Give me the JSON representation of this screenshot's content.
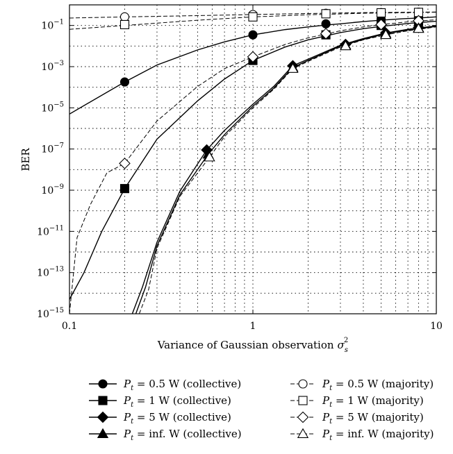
{
  "chart_data": {
    "type": "line",
    "xlabel_main": "Variance of Gaussian observation",
    "xlabel_symbol": "σ",
    "xlabel_sub": "s",
    "xlabel_sup": "2",
    "ylabel": "BER",
    "x_scale": "log",
    "y_scale": "log",
    "xlim": [
      0.1,
      10
    ],
    "ylim": [
      1e-15,
      1
    ],
    "x_ticks": [
      {
        "value": 0.1,
        "label": "0.1"
      },
      {
        "value": 1,
        "label": "1"
      },
      {
        "value": 10,
        "label": "10"
      }
    ],
    "y_ticks": [
      {
        "value": 1e-15,
        "base": "10",
        "exp": "−15"
      },
      {
        "value": 1e-13,
        "base": "10",
        "exp": "−13"
      },
      {
        "value": 1e-11,
        "base": "10",
        "exp": "−11"
      },
      {
        "value": 1e-09,
        "base": "10",
        "exp": "−9"
      },
      {
        "value": 1e-07,
        "base": "10",
        "exp": "−7"
      },
      {
        "value": 1e-05,
        "base": "10",
        "exp": "−5"
      },
      {
        "value": 0.001,
        "base": "10",
        "exp": "−3"
      },
      {
        "value": 0.1,
        "base": "10",
        "exp": "−1"
      }
    ],
    "grid": true,
    "legend_position": "below",
    "series": [
      {
        "name": {
          "pre": "P",
          "sub": "t",
          "post": " = 0.5 W (collective)"
        },
        "line": "solid",
        "marker": "circle",
        "filled": true,
        "x": [
          0.1,
          0.2,
          0.3,
          0.5,
          0.7,
          1,
          1.5,
          2,
          2.5,
          3,
          4,
          5,
          6.5,
          8,
          10
        ],
        "y": [
          5e-06,
          0.00018,
          0.0012,
          0.0065,
          0.016,
          0.035,
          0.063,
          0.085,
          0.105,
          0.12,
          0.155,
          0.18,
          0.21,
          0.23,
          0.26
        ],
        "markers_x": [
          0.2,
          1,
          2.5,
          5,
          8
        ],
        "markers_y": [
          0.00018,
          0.035,
          0.12,
          0.2,
          0.24
        ]
      },
      {
        "name": {
          "pre": "P",
          "sub": "t",
          "post": " = 0.5 W (majority)"
        },
        "line": "dashed",
        "marker": "circle",
        "filled": false,
        "x": [
          0.1,
          0.2,
          0.5,
          1,
          2,
          4,
          10
        ],
        "y": [
          0.23,
          0.26,
          0.3,
          0.34,
          0.38,
          0.42,
          0.45
        ],
        "markers_x": [
          0.2,
          1,
          2.5,
          5,
          8
        ],
        "markers_y": [
          0.26,
          0.34,
          0.39,
          0.42,
          0.44
        ]
      },
      {
        "name": {
          "pre": "P",
          "sub": "t",
          "post": " = 1 W (collective)"
        },
        "line": "solid",
        "marker": "square",
        "filled": true,
        "x": [
          0.1,
          0.12,
          0.15,
          0.2,
          0.3,
          0.5,
          0.7,
          1,
          1.5,
          2,
          3,
          4,
          5,
          7,
          10
        ],
        "y": [
          5e-15,
          1e-13,
          1e-11,
          1.2e-09,
          3e-07,
          2.2e-05,
          0.00025,
          0.002,
          0.009,
          0.02,
          0.045,
          0.07,
          0.09,
          0.125,
          0.16
        ],
        "markers_x": [
          0.2,
          1,
          2.5,
          5,
          8
        ],
        "markers_y": [
          1.2e-09,
          0.002,
          0.035,
          0.1,
          0.16
        ]
      },
      {
        "name": {
          "pre": "P",
          "sub": "t",
          "post": " = 1 W (majority)"
        },
        "line": "dashed",
        "marker": "square",
        "filled": false,
        "x": [
          0.1,
          0.2,
          0.5,
          1,
          2,
          4,
          10
        ],
        "y": [
          0.065,
          0.1,
          0.18,
          0.26,
          0.33,
          0.39,
          0.44
        ],
        "markers_x": [
          0.2,
          1,
          2.5,
          5,
          8
        ],
        "markers_y": [
          0.11,
          0.26,
          0.37,
          0.41,
          0.43
        ]
      },
      {
        "name": {
          "pre": "P",
          "sub": "t",
          "post": " = 5 W (collective)"
        },
        "line": "solid",
        "marker": "diamond",
        "filled": true,
        "x": [
          0.22,
          0.25,
          0.3,
          0.4,
          0.56,
          0.7,
          1,
          1.3,
          1.65,
          2,
          3,
          4,
          5.3,
          7,
          10
        ],
        "y": [
          1e-15,
          2e-14,
          3e-12,
          9e-10,
          9e-08,
          8e-07,
          1.5e-05,
          0.00011,
          0.0011,
          0.0023,
          0.011,
          0.023,
          0.043,
          0.065,
          0.095
        ],
        "markers_x": [
          0.56,
          1.65,
          3.2,
          5.3,
          8
        ],
        "markers_y": [
          9e-08,
          0.0011,
          0.012,
          0.043,
          0.08
        ]
      },
      {
        "name": {
          "pre": "P",
          "sub": "t",
          "post": " = 5 W (majority)"
        },
        "line": "dashed",
        "marker": "diamond",
        "filled": false,
        "x": [
          0.1,
          0.11,
          0.13,
          0.16,
          0.2,
          0.3,
          0.5,
          0.7,
          1,
          1.5,
          2,
          3,
          4,
          5,
          7,
          10
        ],
        "y": [
          1e-15,
          5e-12,
          2e-10,
          7e-09,
          2e-08,
          2.3e-06,
          0.00011,
          0.0008,
          0.003,
          0.012,
          0.025,
          0.055,
          0.085,
          0.11,
          0.15,
          0.19
        ],
        "markers_x": [
          0.2,
          1,
          2.5,
          5,
          8
        ],
        "markers_y": [
          2e-08,
          0.003,
          0.04,
          0.11,
          0.17
        ]
      },
      {
        "name": {
          "pre": "P",
          "sub": "t",
          "post": " = inf. W (collective)"
        },
        "line": "solid",
        "marker": "triangle",
        "filled": true,
        "x": [
          0.23,
          0.26,
          0.3,
          0.4,
          0.57,
          0.7,
          1,
          1.3,
          1.65,
          2,
          3,
          4,
          5.3,
          7,
          10
        ],
        "y": [
          1e-15,
          2e-14,
          2e-12,
          6e-10,
          5.5e-08,
          5e-07,
          1.2e-05,
          9e-05,
          0.0009,
          0.002,
          0.01,
          0.021,
          0.04,
          0.06,
          0.09
        ],
        "markers_x": [
          0.57,
          1.65,
          3.2,
          5.3,
          8
        ],
        "markers_y": [
          5.5e-08,
          0.0009,
          0.011,
          0.04,
          0.075
        ]
      },
      {
        "name": {
          "pre": "P",
          "sub": "t",
          "post": " = inf. W (majority)"
        },
        "line": "dashed",
        "marker": "triangle",
        "filled": false,
        "x": [
          0.24,
          0.27,
          0.3,
          0.4,
          0.58,
          0.7,
          1,
          1.3,
          1.65,
          2,
          3,
          4,
          5.3,
          7,
          10
        ],
        "y": [
          1e-15,
          1.5e-14,
          1.5e-12,
          5e-10,
          4e-08,
          4e-07,
          1e-05,
          8e-05,
          0.0008,
          0.0018,
          0.009,
          0.02,
          0.035,
          0.055,
          0.085
        ],
        "markers_x": [
          0.58,
          1.65,
          3.2,
          5.3,
          8
        ],
        "markers_y": [
          4e-08,
          0.0008,
          0.01,
          0.035,
          0.07
        ]
      }
    ]
  }
}
